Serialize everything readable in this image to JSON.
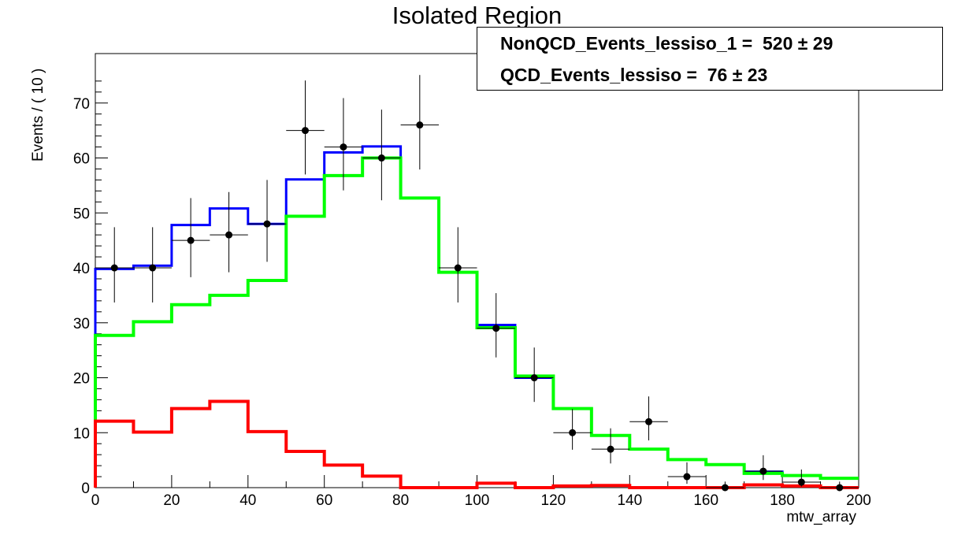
{
  "chart_data": {
    "type": "line",
    "title": "Isolated Region",
    "xlabel": "mtw_array",
    "ylabel": "Events / ( 10 )",
    "xlim": [
      0,
      200
    ],
    "ylim": [
      0,
      79
    ],
    "bin_edges": [
      0,
      10,
      20,
      30,
      40,
      50,
      60,
      70,
      80,
      90,
      100,
      110,
      120,
      130,
      140,
      150,
      160,
      170,
      180,
      190,
      200
    ],
    "x_ticks": [
      "0",
      "20",
      "40",
      "60",
      "80",
      "100",
      "120",
      "140",
      "160",
      "180",
      "200"
    ],
    "y_ticks": [
      "0",
      "10",
      "20",
      "30",
      "40",
      "50",
      "60",
      "70"
    ],
    "legend": [
      {
        "label": "NonQCD_Events_lessiso_1 =  520 ± 29"
      },
      {
        "label": "QCD_Events_lessiso =  76 ± 23"
      }
    ],
    "series": [
      {
        "kind": "step",
        "color": "#0000ff",
        "values": [
          39.8,
          40.4,
          47.8,
          50.8,
          48.0,
          56.1,
          61.0,
          62.1,
          52.7,
          39.2,
          29.6,
          20.0,
          14.4,
          9.5,
          7.0,
          5.1,
          4.2,
          2.9,
          2.2,
          1.7
        ]
      },
      {
        "kind": "step",
        "color": "#00ff00",
        "values": [
          27.7,
          30.2,
          33.3,
          35.0,
          37.7,
          49.4,
          56.8,
          60.0,
          52.7,
          39.2,
          29.1,
          20.3,
          14.4,
          9.5,
          7.0,
          5.1,
          4.2,
          2.6,
          2.2,
          1.7
        ]
      },
      {
        "kind": "step",
        "color": "#ff0000",
        "values": [
          12.1,
          10.1,
          14.4,
          15.7,
          10.2,
          6.6,
          4.1,
          2.1,
          0.0,
          0.0,
          0.8,
          0.0,
          0.3,
          0.4,
          0.0,
          0.0,
          0.0,
          0.5,
          0.3,
          0.0
        ]
      },
      {
        "kind": "points",
        "color": "#000000",
        "x": [
          5,
          15,
          25,
          35,
          45,
          55,
          65,
          75,
          85,
          95,
          105,
          115,
          125,
          135,
          145,
          155,
          165,
          175,
          185,
          195
        ],
        "y": [
          40,
          40,
          45,
          46,
          48,
          65,
          62,
          60,
          66,
          40,
          29,
          20,
          10,
          7,
          12,
          2,
          0,
          3,
          1,
          0
        ],
        "yerr_low": [
          6.3,
          6.3,
          6.7,
          6.8,
          6.9,
          8.0,
          7.9,
          7.7,
          8.1,
          6.3,
          5.3,
          4.4,
          3.1,
          2.6,
          3.4,
          1.3,
          0,
          1.6,
          0.8,
          0
        ],
        "yerr_high": [
          7.4,
          7.4,
          7.7,
          7.8,
          8.0,
          9.1,
          8.9,
          8.8,
          9.1,
          7.4,
          6.4,
          5.5,
          4.3,
          3.8,
          4.6,
          2.6,
          1.1,
          2.9,
          2.3,
          1.1
        ]
      }
    ]
  }
}
